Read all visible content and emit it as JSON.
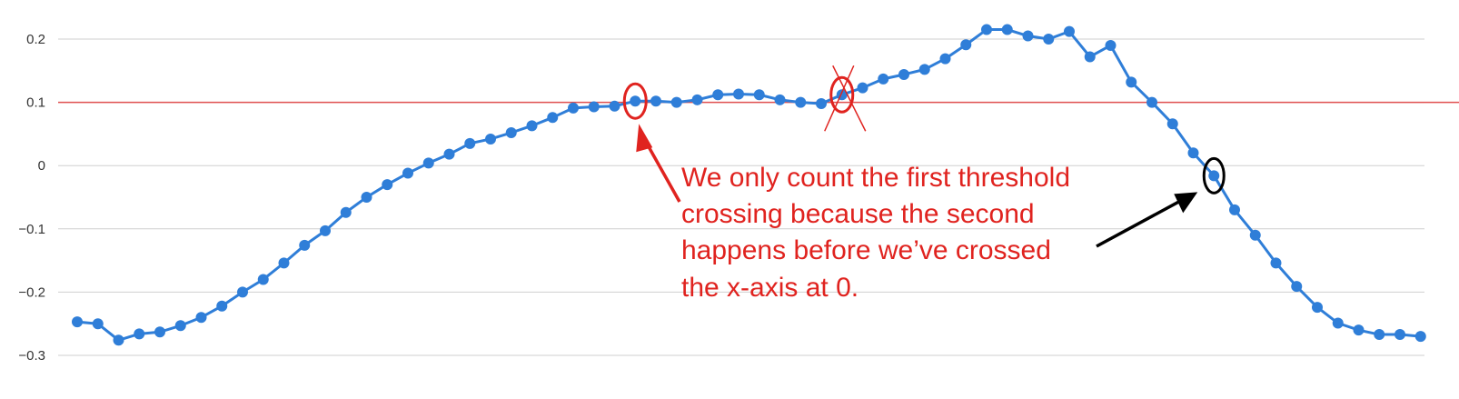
{
  "chart_data": {
    "type": "line",
    "title": "",
    "xlabel": "",
    "ylabel": "",
    "ylim": [
      -0.3,
      0.2
    ],
    "yticks": [
      {
        "value": 0.2,
        "label": "0.2"
      },
      {
        "value": 0.1,
        "label": "0.1"
      },
      {
        "value": 0,
        "label": "0"
      },
      {
        "value": -0.1,
        "label": "−0.1"
      },
      {
        "value": -0.2,
        "label": "−0.2"
      },
      {
        "value": -0.3,
        "label": "−0.3"
      }
    ],
    "grid": true,
    "legend": "none",
    "threshold": 0.1,
    "series": [
      {
        "color": "#2f7ed8",
        "x": [
          1,
          2,
          3,
          4,
          5,
          6,
          7,
          8,
          9,
          10,
          11,
          12,
          13,
          14,
          15,
          16,
          17,
          18,
          19,
          20,
          21,
          22,
          23,
          24,
          25,
          26,
          27,
          28,
          29,
          30,
          31,
          32,
          33,
          34,
          35,
          36,
          37,
          38,
          39,
          40,
          41,
          42,
          43,
          44,
          45,
          46,
          47,
          48,
          49,
          50,
          51,
          52,
          53,
          54,
          55,
          56,
          57,
          58,
          59,
          60,
          61,
          62,
          63,
          64,
          65,
          66
        ],
        "values": [
          -0.247,
          -0.25,
          -0.276,
          -0.266,
          -0.263,
          -0.253,
          -0.24,
          -0.222,
          -0.2,
          -0.18,
          -0.154,
          -0.126,
          -0.103,
          -0.074,
          -0.05,
          -0.03,
          -0.012,
          0.004,
          0.018,
          0.035,
          0.042,
          0.052,
          0.063,
          0.076,
          0.091,
          0.093,
          0.094,
          0.102,
          0.102,
          0.1,
          0.104,
          0.112,
          0.113,
          0.112,
          0.104,
          0.1,
          0.098,
          0.112,
          0.123,
          0.137,
          0.144,
          0.152,
          0.169,
          0.191,
          0.215,
          0.215,
          0.205,
          0.2,
          0.212,
          0.172,
          0.19,
          0.132,
          0.1,
          0.066,
          0.02,
          -0.016,
          -0.07,
          -0.11,
          -0.154,
          -0.191,
          -0.224,
          -0.249,
          -0.26,
          -0.267,
          -0.267,
          -0.27
        ]
      }
    ],
    "annotations": {
      "threshold_color": "#e05050",
      "accent_color": "#e0231f",
      "text_lines": [
        "We only count the first threshold",
        "crossing because the second",
        "happens before we’ve crossed",
        "the x-axis at 0."
      ],
      "circled_first": {
        "x": 28,
        "y": 0.102
      },
      "circled_crossed_out": {
        "x": 38,
        "y": 0.112
      },
      "circled_zero": {
        "x": 56,
        "y": -0.016
      }
    }
  }
}
